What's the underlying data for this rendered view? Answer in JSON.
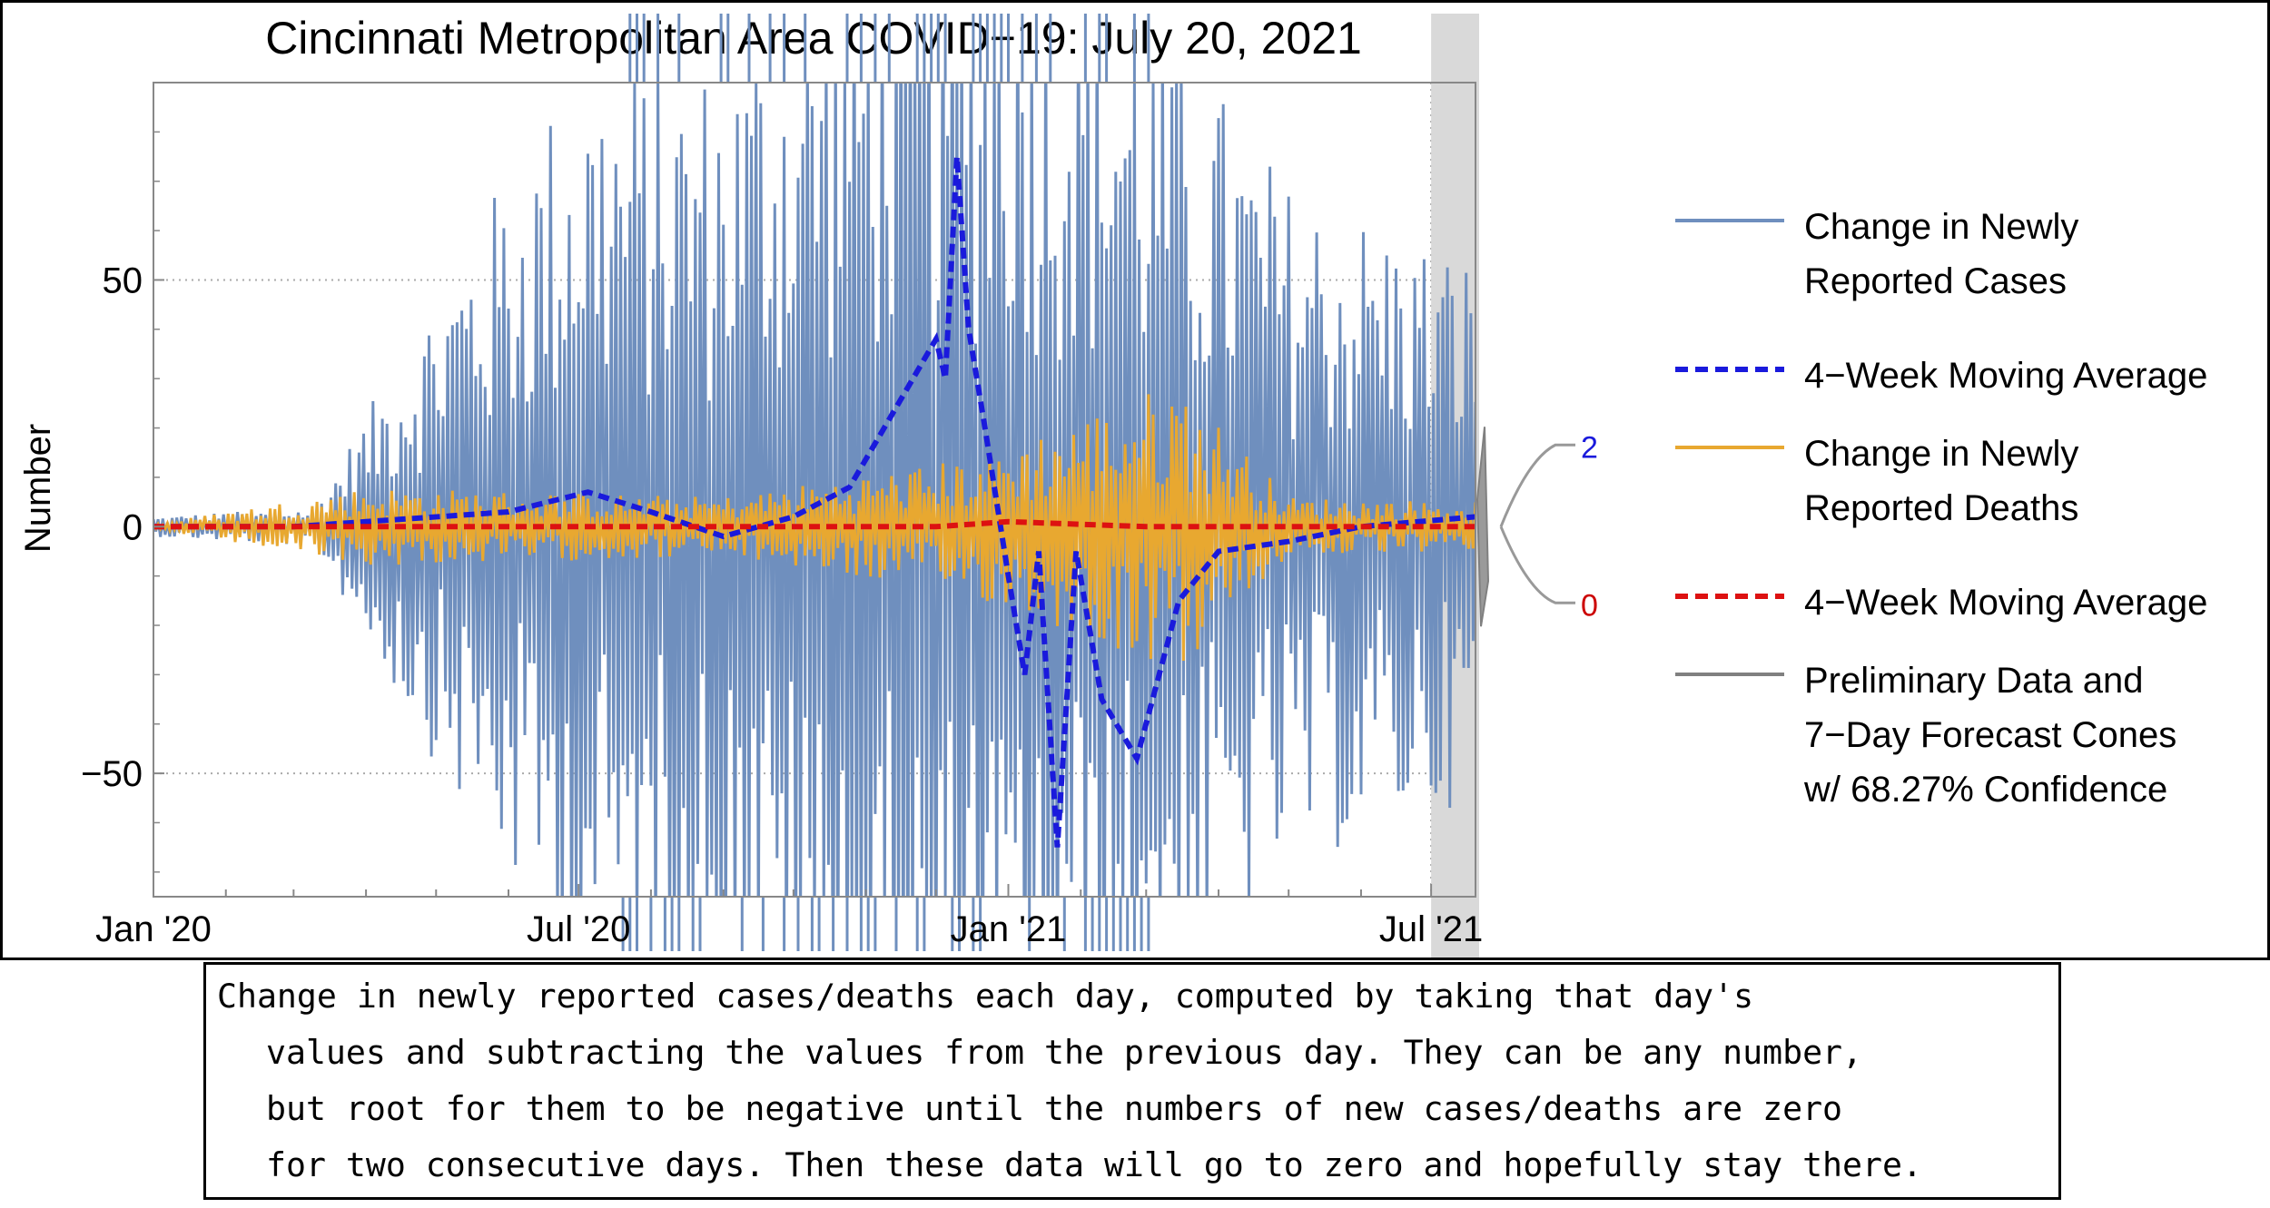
{
  "chart_data": {
    "type": "line",
    "title": "Cincinnati Metropolitan Area COVID−19: July 20, 2021",
    "xlabel": "",
    "ylabel": "Number",
    "xlim": [
      "2020-01-01",
      "2021-07-20"
    ],
    "ylim": [
      -75,
      90
    ],
    "x_ticks": [
      "Jan '20",
      "Jul '20",
      "Jan '21",
      "Jul '21"
    ],
    "y_ticks": [
      "50",
      "0",
      "−50"
    ],
    "y_tick_values": [
      50,
      0,
      -50
    ],
    "grid": "dotted",
    "preliminary_region": [
      "2021-07-01",
      "2021-07-20"
    ],
    "forecast_labels": [
      {
        "value": "2",
        "color": "#1a1adc"
      },
      {
        "value": "0",
        "color": "#cc0000"
      }
    ],
    "series": [
      {
        "name": "Change in Newly Reported Cases",
        "color": "#6f8fbe",
        "style": "solid",
        "description": "daily change, high-amplitude oscillation",
        "amplitude_profile": [
          {
            "x": "2020-01-01",
            "amp": 2
          },
          {
            "x": "2020-03-10",
            "amp": 4
          },
          {
            "x": "2020-04-15",
            "amp": 35
          },
          {
            "x": "2020-05-15",
            "amp": 60
          },
          {
            "x": "2020-07-01",
            "amp": 95
          },
          {
            "x": "2020-09-01",
            "amp": 95
          },
          {
            "x": "2020-11-01",
            "amp": 130
          },
          {
            "x": "2021-01-01",
            "amp": 140
          },
          {
            "x": "2021-03-01",
            "amp": 110
          },
          {
            "x": "2021-05-01",
            "amp": 70
          },
          {
            "x": "2021-07-20",
            "amp": 55
          }
        ]
      },
      {
        "name": "4−Week Moving Average",
        "color": "#1a1adc",
        "style": "dashed",
        "points": [
          {
            "x": "2020-01-01",
            "y": 0
          },
          {
            "x": "2020-03-01",
            "y": 0
          },
          {
            "x": "2020-04-01",
            "y": 1
          },
          {
            "x": "2020-06-01",
            "y": 3
          },
          {
            "x": "2020-07-05",
            "y": 7
          },
          {
            "x": "2020-08-01",
            "y": 3
          },
          {
            "x": "2020-09-01",
            "y": -2
          },
          {
            "x": "2020-10-01",
            "y": 2
          },
          {
            "x": "2020-10-25",
            "y": 8
          },
          {
            "x": "2020-11-15",
            "y": 25
          },
          {
            "x": "2020-12-01",
            "y": 38
          },
          {
            "x": "2020-12-05",
            "y": 30
          },
          {
            "x": "2020-12-10",
            "y": 75
          },
          {
            "x": "2020-12-15",
            "y": 40
          },
          {
            "x": "2020-12-22",
            "y": 20
          },
          {
            "x": "2021-01-01",
            "y": -10
          },
          {
            "x": "2021-01-08",
            "y": -30
          },
          {
            "x": "2021-01-14",
            "y": -5
          },
          {
            "x": "2021-01-22",
            "y": -65
          },
          {
            "x": "2021-01-30",
            "y": -5
          },
          {
            "x": "2021-02-10",
            "y": -35
          },
          {
            "x": "2021-02-25",
            "y": -47
          },
          {
            "x": "2021-03-15",
            "y": -15
          },
          {
            "x": "2021-04-01",
            "y": -5
          },
          {
            "x": "2021-05-01",
            "y": -3
          },
          {
            "x": "2021-06-01",
            "y": 0
          },
          {
            "x": "2021-07-20",
            "y": 2
          }
        ]
      },
      {
        "name": "Change in Newly Reported Deaths",
        "color": "#e8a830",
        "style": "solid",
        "description": "daily change, small oscillation",
        "amplitude_profile": [
          {
            "x": "2020-01-01",
            "amp": 0.5
          },
          {
            "x": "2020-04-01",
            "amp": 8
          },
          {
            "x": "2020-09-01",
            "amp": 6
          },
          {
            "x": "2020-12-15",
            "amp": 14
          },
          {
            "x": "2021-03-15",
            "amp": 30
          },
          {
            "x": "2021-05-01",
            "amp": 6
          },
          {
            "x": "2021-07-20",
            "amp": 5
          }
        ]
      },
      {
        "name": "4−Week Moving Average",
        "color": "#dd1111",
        "style": "dashed",
        "points": [
          {
            "x": "2020-01-01",
            "y": 0
          },
          {
            "x": "2020-12-01",
            "y": 0
          },
          {
            "x": "2021-01-01",
            "y": 1
          },
          {
            "x": "2021-03-01",
            "y": 0
          },
          {
            "x": "2021-07-20",
            "y": 0
          }
        ]
      },
      {
        "name": "Preliminary Data and 7−Day Forecast Cones w/ 68.27% Confidence",
        "color": "#808080",
        "style": "solid",
        "description": "gray shaded region and forecast cones"
      }
    ]
  },
  "legend": {
    "entries": [
      {
        "lines": [
          "Change in Newly",
          "Reported Cases"
        ],
        "color": "#6f8fbe",
        "style": "solid"
      },
      {
        "lines": [
          "4−Week Moving Average"
        ],
        "color": "#1a1adc",
        "style": "dashed"
      },
      {
        "lines": [
          "Change in Newly",
          "Reported Deaths"
        ],
        "color": "#e8a830",
        "style": "solid"
      },
      {
        "lines": [
          "4−Week Moving Average"
        ],
        "color": "#dd1111",
        "style": "dashed"
      },
      {
        "lines": [
          "Preliminary Data and",
          "7−Day Forecast Cones",
          "w/ 68.27% Confidence"
        ],
        "color": "#808080",
        "style": "solid"
      }
    ]
  },
  "caption": {
    "line1": "Change in newly reported cases/deaths each day, computed by taking that day's",
    "line2": "values and subtracting the values from the previous day. They can be any number,",
    "line3": "but root for them to be negative until the numbers of new cases/deaths are zero",
    "line4": "for two consecutive days. Then these data will go to zero and hopefully stay there."
  }
}
